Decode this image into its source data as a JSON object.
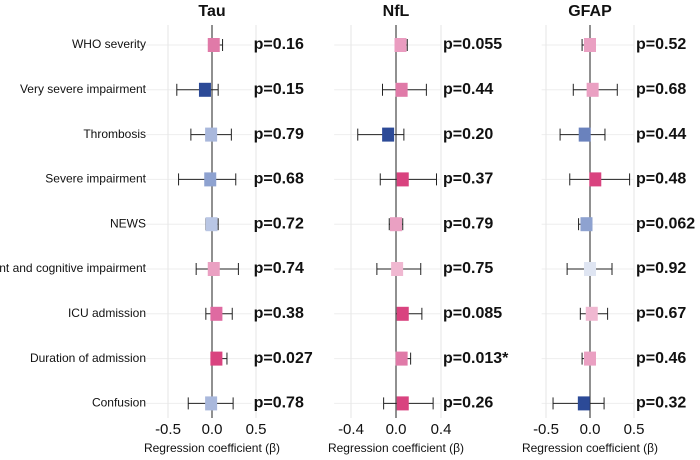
{
  "chart_data": [
    {
      "type": "forest",
      "title": "Tau",
      "xlabel": "Regression coefficient (β)",
      "categories": [
        "WHO severity",
        "Very severe impairment",
        "Thrombosis",
        "Severe impairment",
        "NEWS",
        "Moderate impairment and cognitive impairment",
        "ICU admission",
        "Duration of admission",
        "Confusion"
      ],
      "values": [
        0.02,
        -0.08,
        -0.01,
        -0.02,
        -0.005,
        0.02,
        0.05,
        0.05,
        -0.01
      ],
      "ci_low": [
        -0.03,
        -0.4,
        -0.24,
        -0.38,
        -0.07,
        -0.18,
        -0.07,
        0.02,
        -0.27
      ],
      "ci_high": [
        0.12,
        0.07,
        0.22,
        0.27,
        0.07,
        0.3,
        0.23,
        0.17,
        0.24
      ],
      "p_labels": [
        "p=0.16",
        "p=0.15",
        "p=0.79",
        "p=0.68",
        "p=0.72",
        "p=0.74",
        "p=0.38",
        "p=0.027",
        "p=0.78"
      ],
      "colors": [
        "#e07aa8",
        "#2c4a97",
        "#a9b8dc",
        "#8ea2d0",
        "#b9c6e4",
        "#eaa0c2",
        "#df6aa1",
        "#d9437f",
        "#a9b8dc"
      ],
      "xlim": [
        -0.75,
        0.45
      ],
      "xticks": [
        -0.5,
        {
          "value": 0,
          "label": "0.0"
        },
        0.5
      ],
      "grid": true
    },
    {
      "type": "forest",
      "title": "NfL",
      "xlabel": "Regression coefficient (β)",
      "values": [
        0.04,
        0.05,
        -0.07,
        0.06,
        0.0,
        0.01,
        0.06,
        0.05,
        0.06
      ],
      "ci_low": [
        0.0,
        -0.12,
        -0.34,
        -0.14,
        -0.06,
        -0.17,
        0.0,
        0.0,
        -0.11
      ],
      "ci_high": [
        0.1,
        0.27,
        0.07,
        0.36,
        0.06,
        0.22,
        0.23,
        0.13,
        0.33
      ],
      "p_labels": [
        "p=0.055",
        "p=0.44",
        "p=0.20",
        "p=0.37",
        "p=0.79",
        "p=0.75",
        "p=0.085",
        "p=0.013*",
        "p=0.26"
      ],
      "colors": [
        "#ea9cc0",
        "#e07aa8",
        "#2c4a97",
        "#d9437f",
        "#eaa0c2",
        "#f0b8d1",
        "#d9437f",
        "#e07aa8",
        "#d9437f"
      ],
      "xlim": [
        -0.55,
        0.4
      ],
      "xticks": [
        -0.4,
        {
          "value": 0,
          "label": "0.0"
        },
        0.4
      ],
      "grid": true
    },
    {
      "type": "forest",
      "title": "GFAP",
      "xlabel": "Regression coefficient (β)",
      "values": [
        0.0,
        0.03,
        -0.06,
        0.06,
        -0.04,
        0.0,
        0.02,
        0.0,
        -0.07
      ],
      "ci_low": [
        -0.09,
        -0.19,
        -0.34,
        -0.23,
        -0.13,
        -0.26,
        -0.11,
        -0.09,
        -0.42
      ],
      "ci_high": [
        0.06,
        0.31,
        0.17,
        0.45,
        0.02,
        0.25,
        0.2,
        0.06,
        0.16
      ],
      "p_labels": [
        "p=0.52",
        "p=0.68",
        "p=0.44",
        "p=0.48",
        "p=0.062",
        "p=0.92",
        "p=0.67",
        "p=0.46",
        "p=0.32"
      ],
      "colors": [
        "#eaa0c2",
        "#eaa0c2",
        "#6a82bd",
        "#d9437f",
        "#8ea2d0",
        "#dfe5f2",
        "#f0b8d1",
        "#eaa0c2",
        "#2c4a97"
      ],
      "xlim": [
        -0.55,
        0.5
      ],
      "xticks": [
        -0.5,
        {
          "value": 0,
          "label": "0.0"
        },
        0.5
      ],
      "grid": true
    }
  ]
}
